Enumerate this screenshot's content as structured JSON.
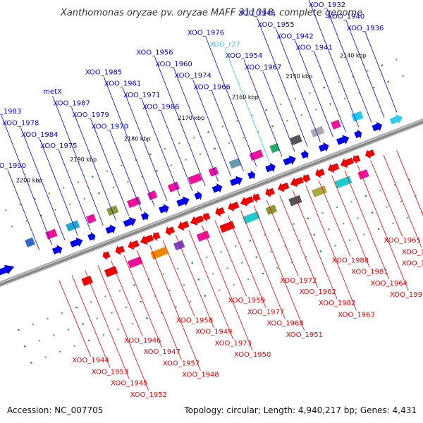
{
  "title": "Xanthomonas oryzae pv. oryzae MAFF 311018, complete genome",
  "footer": {
    "accession": "Accession: NC_007705",
    "summary": "Topology: circular; Length: 4,940,217 bp; Genes: 4,431"
  },
  "colors": {
    "forward": "#0000ee",
    "reverse": "#ee0000",
    "rna": "#33ccee",
    "axis": "#888888"
  },
  "scale": {
    "unit": "kbp",
    "ticks": [
      "2140 kbp",
      "2150 kbp",
      "2160 kbp",
      "2170 kbp",
      "2180 kbp",
      "2190 kbp",
      "2200 kbp"
    ]
  },
  "labels_top": [
    {
      "text": "XOO_1936",
      "color": "forward"
    },
    {
      "text": "XOO_1940",
      "color": "forward"
    },
    {
      "text": "XOO_1932",
      "color": "forward"
    },
    {
      "text": "XOO_1939",
      "color": "forward"
    },
    {
      "text": "XOO_1941",
      "color": "forward"
    },
    {
      "text": "XOO_1942",
      "color": "forward"
    },
    {
      "text": "XOO_1955",
      "color": "forward"
    },
    {
      "text": "XOO_1943",
      "color": "forward"
    },
    {
      "text": "XOO_1967",
      "color": "forward"
    },
    {
      "text": "XOO_1954",
      "color": "forward"
    },
    {
      "text": "XOO_r27",
      "color": "rna"
    },
    {
      "text": "XOO_1976",
      "color": "forward"
    },
    {
      "text": "XOO_1966",
      "color": "forward"
    },
    {
      "text": "XOO_1974",
      "color": "forward"
    },
    {
      "text": "XOO_1960",
      "color": "forward"
    },
    {
      "text": "XOO_1956",
      "color": "forward"
    },
    {
      "text": "XOO_1986",
      "color": "forward"
    },
    {
      "text": "XOO_1971",
      "color": "forward"
    },
    {
      "text": "XOO_1961",
      "color": "forward"
    },
    {
      "text": "XOO_1985",
      "color": "forward"
    },
    {
      "text": "XOO_1970",
      "color": "forward"
    },
    {
      "text": "XOO_1979",
      "color": "forward"
    },
    {
      "text": "XOO_1987",
      "color": "forward"
    },
    {
      "text": "metX",
      "color": "forward"
    },
    {
      "text": "XOO_1975",
      "color": "forward"
    },
    {
      "text": "XOO_1984",
      "color": "forward"
    },
    {
      "text": "XOO_1978",
      "color": "forward"
    },
    {
      "text": "XOO_1983",
      "color": "forward"
    },
    {
      "text": "XOO_1990",
      "color": "forward"
    }
  ],
  "labels_bottom": [
    {
      "text": "XOO_1944",
      "color": "reverse"
    },
    {
      "text": "XOO_1953",
      "color": "reverse"
    },
    {
      "text": "XOO_1945",
      "color": "reverse"
    },
    {
      "text": "XOO_1952",
      "color": "reverse"
    },
    {
      "text": "XOO_1946",
      "color": "reverse"
    },
    {
      "text": "XOO_1947",
      "color": "reverse"
    },
    {
      "text": "XOO_1957",
      "color": "reverse"
    },
    {
      "text": "XOO_1948",
      "color": "reverse"
    },
    {
      "text": "XOO_1958",
      "color": "reverse"
    },
    {
      "text": "XOO_1949",
      "color": "reverse"
    },
    {
      "text": "XOO_1973",
      "color": "reverse"
    },
    {
      "text": "XOO_1950",
      "color": "reverse"
    },
    {
      "text": "XOO_1959",
      "color": "reverse"
    },
    {
      "text": "XOO_1977",
      "color": "reverse"
    },
    {
      "text": "XOO_1968",
      "color": "reverse"
    },
    {
      "text": "XOO_1951",
      "color": "reverse"
    },
    {
      "text": "XOO_1972",
      "color": "reverse"
    },
    {
      "text": "XOO_1962",
      "color": "reverse"
    },
    {
      "text": "XOO_1982",
      "color": "reverse"
    },
    {
      "text": "XOO_1963",
      "color": "reverse"
    },
    {
      "text": "XOO_1988",
      "color": "reverse"
    },
    {
      "text": "XOO_1981",
      "color": "reverse"
    },
    {
      "text": "XOO_1964",
      "color": "reverse"
    },
    {
      "text": "XOO_1991",
      "color": "reverse"
    },
    {
      "text": "XOO_1965",
      "color": "reverse"
    },
    {
      "text": "XOO_1994",
      "color": "reverse"
    },
    {
      "text": "XOO_1969",
      "color": "reverse"
    }
  ],
  "genes": [
    {
      "strand": "+",
      "ring": 1,
      "color": "#0000ee"
    },
    {
      "strand": "+",
      "ring": 1,
      "color": "#0000ee"
    },
    {
      "strand": "+",
      "ring": 1,
      "color": "#0000ee"
    },
    {
      "strand": "+",
      "ring": 1,
      "color": "#0000ee"
    },
    {
      "strand": "+",
      "ring": 1,
      "color": "#0000ee"
    },
    {
      "strand": "+",
      "ring": 1,
      "color": "#0000ee"
    },
    {
      "strand": "+",
      "ring": 1,
      "color": "#0000ee"
    },
    {
      "strand": "+",
      "ring": 1,
      "color": "#0000ee"
    },
    {
      "strand": "+",
      "ring": 1,
      "color": "#0000ee"
    },
    {
      "strand": "+",
      "ring": 1,
      "color": "#0000ee"
    },
    {
      "strand": "+",
      "ring": 1,
      "color": "#0000ee"
    },
    {
      "strand": "+",
      "ring": 1,
      "color": "#0000ee"
    },
    {
      "strand": "+",
      "ring": 1,
      "color": "#0000ee"
    },
    {
      "strand": "+",
      "ring": 1,
      "color": "#0000ee"
    },
    {
      "strand": "+",
      "ring": 1,
      "color": "#0000ee"
    },
    {
      "strand": "+",
      "ring": 1,
      "color": "#0000ee"
    },
    {
      "strand": "+",
      "ring": 1,
      "color": "#0000ee"
    },
    {
      "strand": "+",
      "ring": 1,
      "color": "#0000ee"
    },
    {
      "strand": "+",
      "ring": 1,
      "color": "#0000ee"
    },
    {
      "strand": "+",
      "ring": 1,
      "color": "#0000ee"
    },
    {
      "strand": "+",
      "ring": 1,
      "color": "#33ccee"
    },
    {
      "strand": "-",
      "ring": 1,
      "color": "#ee0000"
    },
    {
      "strand": "-",
      "ring": 1,
      "color": "#ee0000"
    },
    {
      "strand": "-",
      "ring": 1,
      "color": "#ee0000"
    },
    {
      "strand": "-",
      "ring": 1,
      "color": "#ee0000"
    },
    {
      "strand": "-",
      "ring": 1,
      "color": "#ee0000"
    },
    {
      "strand": "-",
      "ring": 1,
      "color": "#ee0000"
    },
    {
      "strand": "-",
      "ring": 1,
      "color": "#ee0000"
    },
    {
      "strand": "-",
      "ring": 1,
      "color": "#ee0000"
    },
    {
      "strand": "-",
      "ring": 1,
      "color": "#ee0000"
    },
    {
      "strand": "-",
      "ring": 1,
      "color": "#ee0000"
    },
    {
      "strand": "-",
      "ring": 1,
      "color": "#ee0000"
    },
    {
      "strand": "-",
      "ring": 1,
      "color": "#ee0000"
    },
    {
      "strand": "-",
      "ring": 1,
      "color": "#ee0000"
    },
    {
      "strand": "-",
      "ring": 1,
      "color": "#ee0000"
    },
    {
      "strand": "-",
      "ring": 1,
      "color": "#ee0000"
    },
    {
      "strand": "-",
      "ring": 1,
      "color": "#ee0000"
    },
    {
      "strand": "-",
      "ring": 1,
      "color": "#ee0000"
    },
    {
      "strand": "-",
      "ring": 1,
      "color": "#ee0000"
    },
    {
      "strand": "-",
      "ring": 1,
      "color": "#ee0000"
    },
    {
      "strand": "-",
      "ring": 1,
      "color": "#ee0000"
    },
    {
      "strand": "-",
      "ring": 1,
      "color": "#ee0000"
    },
    {
      "strand": "-",
      "ring": 1,
      "color": "#ee0000"
    },
    {
      "strand": "+",
      "ring": 2,
      "color": "#3366cc"
    },
    {
      "strand": "+",
      "ring": 2,
      "color": "#ee1199"
    },
    {
      "strand": "+",
      "ring": 2,
      "color": "#22aacc"
    },
    {
      "strand": "+",
      "ring": 2,
      "color": "#ee1199"
    },
    {
      "strand": "+",
      "ring": 2,
      "color": "#889933"
    },
    {
      "strand": "+",
      "ring": 2,
      "color": "#ee1199"
    },
    {
      "strand": "+",
      "ring": 2,
      "color": "#ee1199"
    },
    {
      "strand": "+",
      "ring": 2,
      "color": "#ee1199"
    },
    {
      "strand": "+",
      "ring": 2,
      "color": "#ee1199"
    },
    {
      "strand": "+",
      "ring": 2,
      "color": "#ee1199"
    },
    {
      "strand": "+",
      "ring": 2,
      "color": "#6699aa"
    },
    {
      "strand": "+",
      "ring": 2,
      "color": "#ee1199"
    },
    {
      "strand": "+",
      "ring": 2,
      "color": "#22aa66"
    },
    {
      "strand": "+",
      "ring": 2,
      "color": "#555555"
    },
    {
      "strand": "+",
      "ring": 2,
      "color": "#aaaaaa"
    },
    {
      "strand": "+",
      "ring": 2,
      "color": "#ee1199"
    },
    {
      "strand": "+",
      "ring": 2,
      "color": "#22ccee"
    },
    {
      "strand": "-",
      "ring": 2,
      "color": "#ee0000"
    },
    {
      "strand": "-",
      "ring": 2,
      "color": "#ee0000"
    },
    {
      "strand": "-",
      "ring": 2,
      "color": "#ee1199"
    },
    {
      "strand": "-",
      "ring": 2,
      "color": "#ee8800"
    },
    {
      "strand": "-",
      "ring": 2,
      "color": "#7744cc"
    },
    {
      "strand": "-",
      "ring": 2,
      "color": "#ee1199"
    },
    {
      "strand": "-",
      "ring": 2,
      "color": "#ee0000"
    },
    {
      "strand": "-",
      "ring": 2,
      "color": "#22cccc"
    },
    {
      "strand": "-",
      "ring": 2,
      "color": "#889933"
    },
    {
      "strand": "-",
      "ring": 2,
      "color": "#555555"
    },
    {
      "strand": "-",
      "ring": 2,
      "color": "#aaaa44"
    },
    {
      "strand": "-",
      "ring": 2,
      "color": "#22cccc"
    },
    {
      "strand": "-",
      "ring": 2,
      "color": "#ee1199"
    }
  ]
}
